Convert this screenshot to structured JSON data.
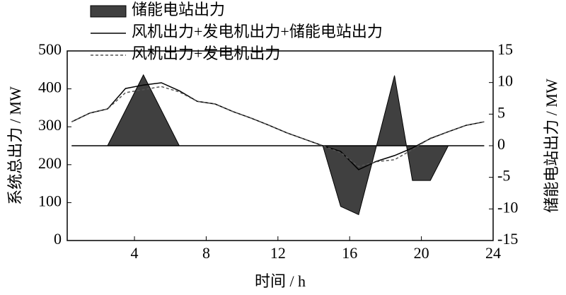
{
  "chart_data": {
    "type": "combo",
    "xlabel": "时间 / h",
    "ylabel": "系统总出力 / MW",
    "y2label": "储能电站出力 / MW",
    "x": [
      0.5,
      1.5,
      2.5,
      3.5,
      4.5,
      5.5,
      6.5,
      7.5,
      8.5,
      9.5,
      10.5,
      11.5,
      12.5,
      13.5,
      14.5,
      15.5,
      16.5,
      17.5,
      18.5,
      19.5,
      20.5,
      21.5,
      22.5,
      23.5
    ],
    "xlim": [
      0.25,
      24
    ],
    "xticks": [
      4,
      8,
      12,
      16,
      20,
      24
    ],
    "ylim": [
      0,
      500
    ],
    "yticks": [
      0,
      100,
      200,
      300,
      400,
      500
    ],
    "y2lim": [
      -15,
      15
    ],
    "y2ticks": [
      -15,
      -10,
      -5,
      0,
      5,
      10,
      15
    ],
    "legend": "top",
    "series": [
      {
        "name": "储能电站出力",
        "type": "area",
        "axis": "y2",
        "color": "#404040",
        "values": [
          0,
          0,
          0,
          5.6,
          11.2,
          5.6,
          0,
          0,
          0,
          0,
          0,
          0,
          0,
          0,
          0,
          -9.6,
          -10.9,
          0,
          11.1,
          -5.5,
          -5.5,
          0,
          0,
          0
        ]
      },
      {
        "name": "风机出力+发电机出力+储能电站出力",
        "type": "line",
        "color": "#000000",
        "dash": "none",
        "values": [
          313,
          336,
          347,
          401,
          410,
          416,
          395,
          367,
          360,
          340,
          323,
          304,
          284,
          267,
          250,
          235,
          187,
          209,
          224,
          244,
          269,
          287,
          304,
          313
        ]
      },
      {
        "name": "风机出力+发电机出力",
        "type": "line",
        "color": "#555555",
        "dash": "4,3",
        "values": [
          313,
          336,
          347,
          390,
          398,
          406,
          392,
          367,
          360,
          340,
          323,
          304,
          284,
          267,
          250,
          232,
          195,
          208,
          213,
          240,
          270,
          287,
          304,
          313
        ]
      }
    ]
  }
}
